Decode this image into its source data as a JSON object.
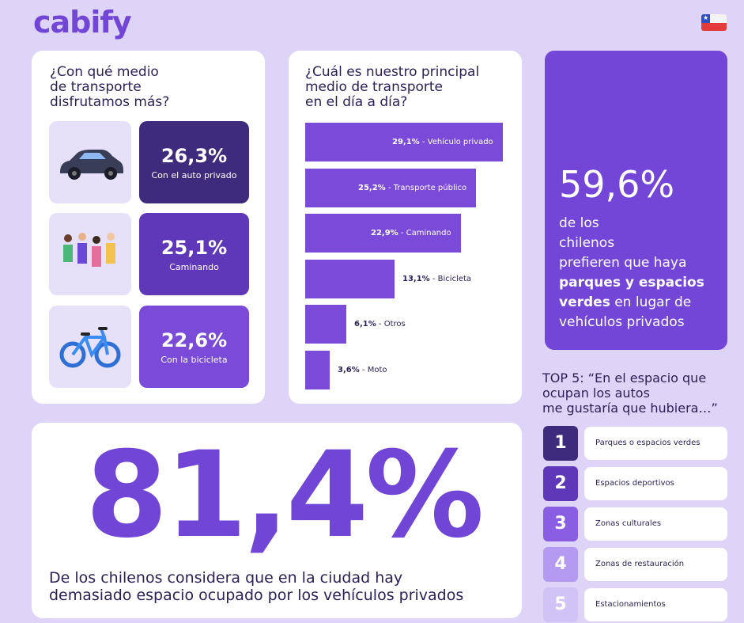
{
  "brand": "cabify",
  "card1": {
    "question": [
      "¿Con qué medio",
      "de transporte",
      "disfrutamos más?"
    ],
    "stats": [
      {
        "value": "26,3%",
        "label": "Con el auto privado",
        "icon": "car-icon",
        "color": "#3f2b7c"
      },
      {
        "value": "25,1%",
        "label": "Caminando",
        "icon": "people-walking-icon",
        "color": "#5e38b8"
      },
      {
        "value": "22,6%",
        "label": "Con la bicicleta",
        "icon": "bicycle-icon",
        "color": "#7a4ad8"
      }
    ]
  },
  "chart_data": {
    "type": "bar",
    "title": "¿Cuál es nuestro principal medio de transporte en el día a día?",
    "title_lines": [
      "¿Cuál es nuestro principal",
      "medio de transporte",
      "en el día a día?"
    ],
    "categories": [
      "Vehículo privado",
      "Transporte público",
      "Caminando",
      "Bicicleta",
      "Otros",
      "Moto"
    ],
    "values": [
      29.1,
      25.2,
      22.9,
      13.1,
      6.1,
      3.6
    ],
    "value_labels": [
      "29,1%",
      "25,2%",
      "22,9%",
      "13,1%",
      "6,1%",
      "3,6%"
    ],
    "orientation": "horizontal",
    "bar_color": "#7a4ad8"
  },
  "highlight": {
    "value": "59,6%",
    "lines": [
      "de los",
      "chilenos",
      "prefieren que haya"
    ],
    "bold1": "parques y espacios",
    "bold2": "verdes",
    "rest1": " en lugar de",
    "rest2": "vehículos privados"
  },
  "top5": {
    "title": [
      "TOP 5: “En el espacio que",
      "ocupan los autos",
      "me gustaría que hubiera…”"
    ],
    "items": [
      {
        "rank": "1",
        "label": "Parques o espacios verdes",
        "color": "#3f2b7c"
      },
      {
        "rank": "2",
        "label": "Espacios deportivos",
        "color": "#5e38b8"
      },
      {
        "rank": "3",
        "label": "Zonas culturales",
        "color": "#8a5ee2"
      },
      {
        "rank": "4",
        "label": "Zonas de restauración",
        "color": "#b49af0"
      },
      {
        "rank": "5",
        "label": "Estacionamientos",
        "color": "#d2c3f7"
      }
    ]
  },
  "main_stat": {
    "value": "81,4%",
    "caption": [
      "De los chilenos considera que en la ciudad hay",
      "demasiado espacio ocupado por los vehículos privados"
    ]
  }
}
